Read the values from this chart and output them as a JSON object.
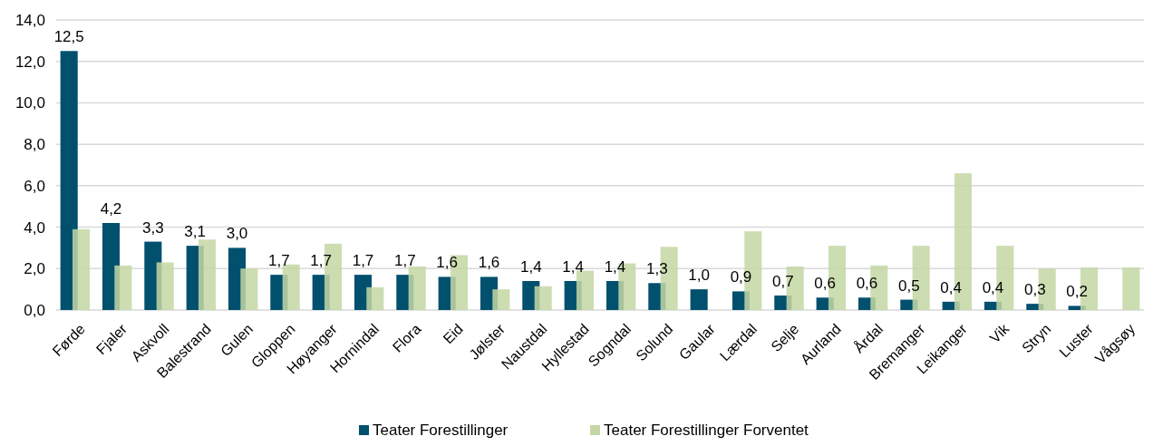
{
  "chart_data": {
    "type": "bar",
    "categories": [
      "Førde",
      "Fjaler",
      "Askvoll",
      "Balestrand",
      "Gulen",
      "Gloppen",
      "Høyanger",
      "Hornindal",
      "Flora",
      "Eid",
      "Jølster",
      "Naustdal",
      "Hyllestad",
      "Sogndal",
      "Solund",
      "Gaular",
      "Lærdal",
      "Selje",
      "Aurland",
      "Årdal",
      "Bremanger",
      "Leikanger",
      "Vik",
      "Stryn",
      "Luster",
      "Vågsøy"
    ],
    "series": [
      {
        "name": "Teater Forestillinger",
        "color": "#00506e",
        "values": [
          12.5,
          4.2,
          3.3,
          3.1,
          3.0,
          1.7,
          1.7,
          1.7,
          1.7,
          1.6,
          1.6,
          1.4,
          1.4,
          1.4,
          1.3,
          1.0,
          0.9,
          0.7,
          0.6,
          0.6,
          0.5,
          0.4,
          0.4,
          0.3,
          0.2,
          null
        ],
        "value_labels": [
          "12,5",
          "4,2",
          "3,3",
          "3,1",
          "3,0",
          "1,7",
          "1,7",
          "1,7",
          "1,7",
          "1,6",
          "1,6",
          "1,4",
          "1,4",
          "1,4",
          "1,3",
          "1,0",
          "0,9",
          "0,7",
          "0,6",
          "0,6",
          "0,5",
          "0,4",
          "0,4",
          "0,3",
          "0,2",
          null
        ]
      },
      {
        "name": "Teater Forestillinger Forventet",
        "color": "#c4d7a4",
        "values": [
          3.9,
          2.15,
          2.3,
          3.4,
          2.0,
          2.2,
          3.2,
          1.1,
          2.1,
          2.65,
          1.0,
          1.15,
          1.9,
          2.25,
          3.05,
          null,
          3.8,
          2.1,
          3.1,
          2.15,
          3.1,
          6.6,
          3.1,
          2.0,
          2.05,
          2.05
        ]
      }
    ],
    "ylim": [
      0,
      14
    ],
    "yticks": [
      {
        "value": 0,
        "label": "0,0"
      },
      {
        "value": 2,
        "label": "2,0"
      },
      {
        "value": 4,
        "label": "4,0"
      },
      {
        "value": 6,
        "label": "6,0"
      },
      {
        "value": 8,
        "label": "8,0"
      },
      {
        "value": 10,
        "label": "10,0"
      },
      {
        "value": 12,
        "label": "12,0"
      },
      {
        "value": 14,
        "label": "14,0"
      }
    ],
    "grid": "y",
    "legend": "bottom"
  }
}
